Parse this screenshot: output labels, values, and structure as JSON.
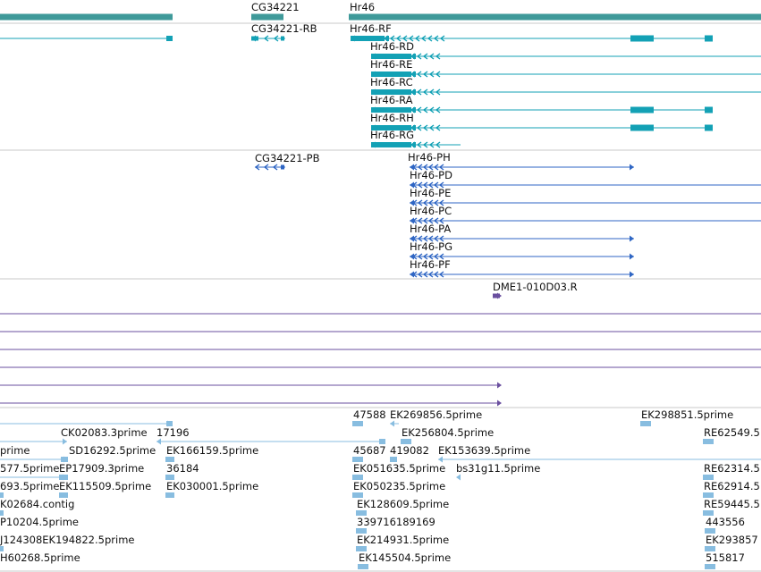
{
  "colors": {
    "gene": "#3f9a9a",
    "transcript": "#13a1b5",
    "protein": "#2f66c4",
    "cdna": "#6a4f9f",
    "est": "#88bde0",
    "divider": "#c8c8c8"
  },
  "genes": [
    {
      "label": "CG34221"
    },
    {
      "label": "Hr46"
    }
  ],
  "transcripts": [
    {
      "label": "CG34221-RB"
    },
    {
      "label": "Hr46-RF"
    },
    {
      "label": "Hr46-RD"
    },
    {
      "label": "Hr46-RE"
    },
    {
      "label": "Hr46-RC"
    },
    {
      "label": "Hr46-RA"
    },
    {
      "label": "Hr46-RH"
    },
    {
      "label": "Hr46-RG"
    }
  ],
  "proteins": [
    {
      "label": "CG34221-PB"
    },
    {
      "label": "Hr46-PH"
    },
    {
      "label": "Hr46-PD"
    },
    {
      "label": "Hr46-PE"
    },
    {
      "label": "Hr46-PC"
    },
    {
      "label": "Hr46-PA"
    },
    {
      "label": "Hr46-PG"
    },
    {
      "label": "Hr46-PF"
    }
  ],
  "cdna": [
    {
      "label": "DME1-010D03.R"
    }
  ],
  "ests": [
    {
      "label": "47588"
    },
    {
      "label": "EK269856.5prime"
    },
    {
      "label": "EK298851.5prime"
    },
    {
      "label": "CK02083.3prime"
    },
    {
      "label": "17196"
    },
    {
      "label": "EK256804.5prime"
    },
    {
      "label": "RE62549.5"
    },
    {
      "label": "prime"
    },
    {
      "label": "SD16292.5prime"
    },
    {
      "label": "EK166159.5prime"
    },
    {
      "label": "45687"
    },
    {
      "label": "419082"
    },
    {
      "label": "EK153639.5prime"
    },
    {
      "label": "577.5prime"
    },
    {
      "label": "EP17909.3prime"
    },
    {
      "label": "36184"
    },
    {
      "label": "EK051635.5prime"
    },
    {
      "label": "bs31g11.5prime"
    },
    {
      "label": "RE62314.5"
    },
    {
      "label": "693.5prime"
    },
    {
      "label": "EK115509.5prime"
    },
    {
      "label": "EK030001.5prime"
    },
    {
      "label": "EK050235.5prime"
    },
    {
      "label": "RE62914.5"
    },
    {
      "label": "K02684.contig"
    },
    {
      "label": "EK128609.5prime"
    },
    {
      "label": "RE59445.5"
    },
    {
      "label": "P10204.5prime"
    },
    {
      "label": "339716189169"
    },
    {
      "label": "443556"
    },
    {
      "label": "J124308EK194822.5prime"
    },
    {
      "label": "EK214931.5prime"
    },
    {
      "label": "EK293857"
    },
    {
      "label": "H60268.5prime"
    },
    {
      "label": "EK145504.5prime"
    },
    {
      "label": "515817"
    }
  ]
}
